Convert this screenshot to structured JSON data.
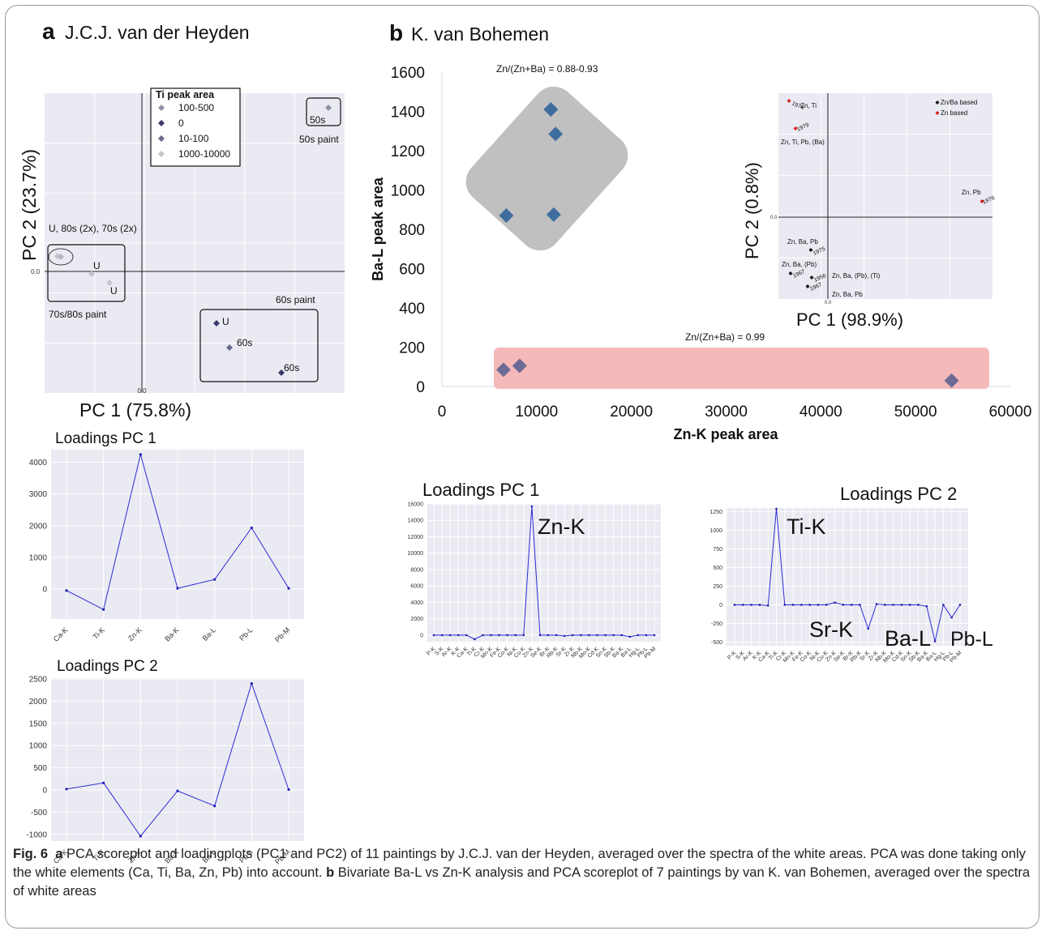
{
  "panel_a": {
    "letter": "a",
    "author": "J.C.J. van der Heyden",
    "score": {
      "xlabel": "PC 1 (75.8%)",
      "ylabel": "PC 2 (23.7%)",
      "x_zero_label": "0.0",
      "y_zero_label": "0.0",
      "legend_title": "Ti peak area",
      "legend": [
        {
          "label": "100-500",
          "color": "#9191a8"
        },
        {
          "label": "0",
          "color": "#3a3a6b"
        },
        {
          "label": "10-100",
          "color": "#6a6a8e"
        },
        {
          "label": "1000-10000",
          "color": "#c4c4cc"
        }
      ],
      "groups": [
        {
          "label": "50s paint",
          "box_label": "50s"
        },
        {
          "label": "70s/80s paint",
          "note": "U, 80s (2x), 70s (2x)",
          "point_labels": [
            "U",
            "U"
          ]
        },
        {
          "label": "60s paint",
          "point_labels": [
            "U",
            "60s",
            "60s"
          ]
        }
      ]
    },
    "loadings_pc1": {
      "title": "Loadings PC 1",
      "categories": [
        "Ca-K",
        "Ti-K",
        "Zn-K",
        "Ba-K",
        "Ba-L",
        "Pb-L",
        "Pb-M"
      ],
      "values": [
        -50,
        -650,
        4250,
        20,
        300,
        1930,
        20
      ],
      "yticks": [
        0,
        1000,
        2000,
        3000,
        4000
      ]
    },
    "loadings_pc2": {
      "title": "Loadings PC 2",
      "categories": [
        "Ca-K",
        "Ti-K",
        "Zn-K",
        "Ba-K",
        "Ba-L",
        "Pb-L",
        "Pb-M"
      ],
      "values": [
        20,
        160,
        -1040,
        -20,
        -360,
        2400,
        10
      ],
      "yticks": [
        -1000,
        -500,
        0,
        500,
        1000,
        1500,
        2000,
        2500
      ]
    }
  },
  "panel_b": {
    "letter": "b",
    "author": "K. van Bohemen",
    "bivariate": {
      "xlabel": "Zn-K peak area",
      "ylabel": "Ba-L peak area",
      "xticks": [
        0,
        10000,
        20000,
        30000,
        40000,
        50000,
        60000
      ],
      "yticks": [
        0,
        200,
        400,
        600,
        800,
        1000,
        1200,
        1400,
        1600
      ],
      "annotation_high": "Zn/(Zn+Ba) = 0.88-0.93",
      "annotation_low": "Zn/(Zn+Ba) = 0.99"
    },
    "score": {
      "xlabel": "PC 1 (98.9%)",
      "ylabel": "PC 2 (0.8%)",
      "x_zero_label": "0.0",
      "y_zero_label": "0.0",
      "legend": [
        {
          "label": "Zn/Ba based",
          "color": "#111111"
        },
        {
          "label": "Zn based",
          "color": "#e01b1b"
        }
      ],
      "labels": [
        "1974",
        "Zn, Ti",
        "1979",
        "Zn, Ti, Pb, (Ba)",
        "Zn, Pb",
        "1976",
        "Zn, Ba, Pb",
        "1975",
        "Zn, Ba, (Pb)",
        "1967",
        "1956",
        "Zn, Ba, (Pb), (Ti)",
        "1967",
        "Zn, Ba, Pb"
      ]
    },
    "loadings_pc1": {
      "title": "Loadings PC 1",
      "annotation": "Zn-K",
      "yticks": [
        0,
        2000,
        4000,
        6000,
        8000,
        10000,
        12000,
        14000,
        16000
      ]
    },
    "loadings_pc2": {
      "title": "Loadings PC 2",
      "annotations": [
        "Ti-K",
        "Sr-K",
        "Ba-L",
        "Pb-L"
      ],
      "yticks": [
        -500,
        -250,
        0,
        250,
        500,
        750,
        1000,
        1250
      ]
    }
  },
  "chart_data": [
    {
      "type": "scatter",
      "panel": "b-bivariate",
      "xlabel": "Zn-K peak area",
      "ylabel": "Ba-L peak area",
      "xlim": [
        0,
        60000
      ],
      "ylim": [
        0,
        1600
      ],
      "series": [
        {
          "x": [
            6800,
            11500,
            12000,
            11800
          ],
          "y": [
            870,
            1410,
            1285,
            875
          ]
        },
        {
          "x": [
            6500,
            8200,
            53800
          ],
          "y": [
            85,
            105,
            30
          ]
        }
      ],
      "colors": [
        "#3f6e9e",
        "#6d6b96"
      ]
    },
    {
      "type": "line",
      "panel": "b-loadings-pc1",
      "title": "Loadings PC 1",
      "categories": [
        "P-K",
        "S-K",
        "Ar-K",
        "K-K",
        "Ca-K",
        "Ti-K",
        "Cr-K",
        "Mn-K",
        "Fe-K",
        "Co-K",
        "Ni-K",
        "Cu-K",
        "Zn-K",
        "Se-K",
        "Br-K",
        "Rb-K",
        "Sr-K",
        "Zr-K",
        "Nb-K",
        "Mo-K",
        "Cd-K",
        "Sn-K",
        "Sb-K",
        "Ba-K",
        "Ba-L",
        "Hg-L",
        "Pb-L",
        "Pb-M"
      ],
      "values": [
        0,
        0,
        0,
        0,
        0,
        -500,
        0,
        0,
        0,
        0,
        0,
        0,
        15700,
        0,
        0,
        0,
        -100,
        0,
        0,
        0,
        0,
        0,
        0,
        0,
        -200,
        0,
        0,
        0
      ],
      "ylim": [
        -800,
        16000
      ]
    },
    {
      "type": "line",
      "panel": "b-loadings-pc2",
      "title": "Loadings PC 2",
      "categories": [
        "P-K",
        "S-K",
        "Ar-K",
        "K-K",
        "Ca-K",
        "Ti-K",
        "Cr-K",
        "Mn-K",
        "Fe-K",
        "Co-K",
        "Ni-K",
        "Cu-K",
        "Zn-K",
        "Se-K",
        "Br-K",
        "Rb-K",
        "Sr-K",
        "Zr-K",
        "Nb-K",
        "Mo-K",
        "Cd-K",
        "Sn-K",
        "Sb-K",
        "Ba-K",
        "Ba-L",
        "Hg-L",
        "Pb-L",
        "Pb-M"
      ],
      "values": [
        0,
        0,
        0,
        0,
        -10,
        1290,
        0,
        0,
        0,
        0,
        0,
        0,
        30,
        0,
        0,
        0,
        -320,
        10,
        0,
        0,
        0,
        0,
        0,
        -20,
        -490,
        0,
        -170,
        0
      ],
      "ylim": [
        -550,
        1300
      ]
    }
  ],
  "caption": {
    "fig": "Fig. 6",
    "a": "a",
    "text_a": "PCA scoreplot and loadingplots (PC1 and PC2) of 11 paintings by J.C.J. van der Heyden, averaged over the spectra of the white areas. PCA was done taking only the white elements (Ca, Ti, Ba, Zn, Pb) into account.",
    "b": "b",
    "text_b": "Bivariate Ba-L vs Zn-K analysis and PCA scoreplot of 7 paintings by van K. van Bohemen, averaged over the spectra of white areas"
  }
}
